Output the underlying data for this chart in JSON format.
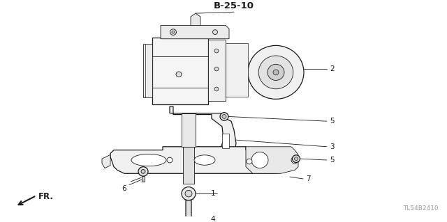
{
  "bg_color": "#ffffff",
  "fig_width": 6.4,
  "fig_height": 3.19,
  "dpi": 100,
  "label_B2510": "B-25-10",
  "watermark": "TL54B2410",
  "line_color": "#1a1a1a",
  "text_color": "#1a1a1a",
  "label_fontsize": 7.5,
  "watermark_fontsize": 6.5,
  "b2510_fontsize": 9.5,
  "fr_fontsize": 8.5
}
